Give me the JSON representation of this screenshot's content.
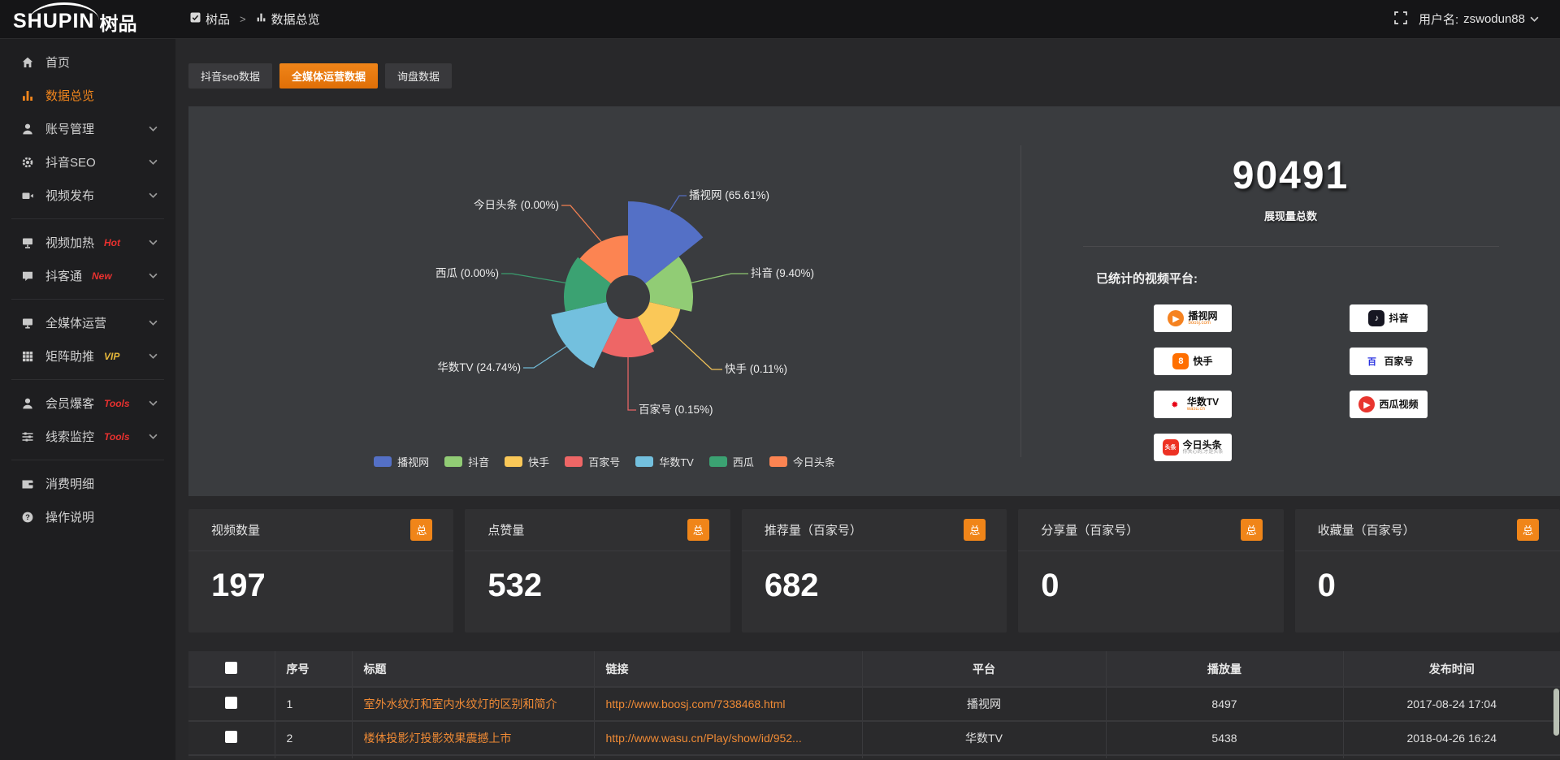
{
  "topbar": {
    "logo_primary": "SHUPIN",
    "logo_secondary": "树品",
    "breadcrumb": [
      {
        "label": "树品"
      },
      {
        "label": "数据总览"
      }
    ],
    "breadcrumb_separator": ">",
    "user_label": "用户名:",
    "username": "zswodun88"
  },
  "sidebar": {
    "items": [
      {
        "icon": "home-icon",
        "label": "首页",
        "active": false,
        "chevron": false,
        "tag": "",
        "tag_color": "",
        "divider_after": false
      },
      {
        "icon": "chart-icon",
        "label": "数据总览",
        "active": true,
        "chevron": false,
        "tag": "",
        "tag_color": "",
        "divider_after": false
      },
      {
        "icon": "user-icon",
        "label": "账号管理",
        "active": false,
        "chevron": true,
        "tag": "",
        "tag_color": "",
        "divider_after": false
      },
      {
        "icon": "gear-icon",
        "label": "抖音SEO",
        "active": false,
        "chevron": true,
        "tag": "",
        "tag_color": "",
        "divider_after": false
      },
      {
        "icon": "video-icon",
        "label": "视频发布",
        "active": false,
        "chevron": true,
        "tag": "",
        "tag_color": "",
        "divider_after": true
      },
      {
        "icon": "heat-icon",
        "label": "视频加热",
        "active": false,
        "chevron": true,
        "tag": "Hot",
        "tag_color": "#e8312f",
        "divider_after": false
      },
      {
        "icon": "chat-icon",
        "label": "抖客通",
        "active": false,
        "chevron": true,
        "tag": "New",
        "tag_color": "#e8312f",
        "divider_after": true
      },
      {
        "icon": "monitor-icon",
        "label": "全媒体运营",
        "active": false,
        "chevron": true,
        "tag": "",
        "tag_color": "",
        "divider_after": false
      },
      {
        "icon": "grid-icon",
        "label": "矩阵助推",
        "active": false,
        "chevron": true,
        "tag": "VIP",
        "tag_color": "#e7b83a",
        "divider_after": true
      },
      {
        "icon": "member-icon",
        "label": "会员爆客",
        "active": false,
        "chevron": true,
        "tag": "Tools",
        "tag_color": "#e8312f",
        "divider_after": false
      },
      {
        "icon": "sliders-icon",
        "label": "线索监控",
        "active": false,
        "chevron": true,
        "tag": "Tools",
        "tag_color": "#e8312f",
        "divider_after": true
      },
      {
        "icon": "wallet-icon",
        "label": "消费明细",
        "active": false,
        "chevron": false,
        "tag": "",
        "tag_color": "",
        "divider_after": false
      },
      {
        "icon": "question-icon",
        "label": "操作说明",
        "active": false,
        "chevron": false,
        "tag": "",
        "tag_color": "",
        "divider_after": false
      }
    ]
  },
  "tabs": [
    {
      "label": "抖音seo数据",
      "active": false
    },
    {
      "label": "全媒体运营数据",
      "active": true
    },
    {
      "label": "询盘数据",
      "active": false
    }
  ],
  "chart_data": {
    "type": "pie",
    "rose": true,
    "legend_position": "bottom",
    "label_format": "{name} ({percent}%)",
    "items": [
      {
        "name": "播视网",
        "percent": 65.61,
        "label": "播视网 (65.61%)",
        "color": "#5470c6",
        "radius": 118
      },
      {
        "name": "抖音",
        "percent": 9.4,
        "label": "抖音 (9.40%)",
        "color": "#91cc75",
        "radius": 80
      },
      {
        "name": "快手",
        "percent": 0.11,
        "label": "快手 (0.11%)",
        "color": "#fac858",
        "radius": 66
      },
      {
        "name": "百家号",
        "percent": 0.15,
        "label": "百家号 (0.15%)",
        "color": "#ee6666",
        "radius": 74
      },
      {
        "name": "华数TV",
        "percent": 24.74,
        "label": "华数TV (24.74%)",
        "color": "#73c0de",
        "radius": 97
      },
      {
        "name": "西瓜",
        "percent": 0.0,
        "label": "西瓜 (0.00%)",
        "color": "#3ba272",
        "radius": 79
      },
      {
        "name": "今日头条",
        "percent": 0.0,
        "label": "今日头条 (0.00%)",
        "color": "#fc8452",
        "radius": 76
      }
    ]
  },
  "summary": {
    "total": "90491",
    "total_label": "展现量总数",
    "platforms_title": "已统计的视频平台:",
    "platforms": [
      {
        "label": "播视网",
        "sub": "boosj.com",
        "sub_color": "#f07b10",
        "icon": "boosj-logo",
        "icon_bg": "#f58220",
        "icon_glyph": "▶",
        "icon_round": true
      },
      {
        "label": "抖音",
        "sub": "",
        "sub_color": "",
        "icon": "douyin-logo",
        "icon_bg": "#161622",
        "icon_glyph": "♪",
        "icon_round": false
      },
      {
        "label": "快手",
        "sub": "",
        "sub_color": "",
        "icon": "kuaishou-logo",
        "icon_bg": "#ff6f00",
        "icon_glyph": "8",
        "icon_round": false
      },
      {
        "label": "百家号",
        "sub": "",
        "sub_color": "",
        "icon": "baijiahao-logo",
        "icon_bg": "#ffffff",
        "icon_glyph": "百",
        "icon_round": false,
        "icon_fg": "#2932e1"
      },
      {
        "label": "华数TV",
        "sub": "wasu.cn",
        "sub_color": "#f07b10",
        "icon": "wasu-logo",
        "icon_bg": "#ffffff",
        "icon_glyph": "✹",
        "icon_round": false,
        "icon_fg": "#e60012"
      },
      {
        "label": "西瓜视频",
        "sub": "",
        "sub_color": "",
        "icon": "xigua-logo",
        "icon_bg": "#e8352e",
        "icon_glyph": "▶",
        "icon_round": true
      },
      {
        "label": "今日头条",
        "sub": "你关心的,才是头条",
        "sub_color": "#999999",
        "icon": "toutiao-logo",
        "icon_bg": "#ed3224",
        "icon_glyph": "头条",
        "icon_round": false
      }
    ]
  },
  "stats_cards": [
    {
      "title": "视频数量",
      "badge": "总",
      "value": "197"
    },
    {
      "title": "点赞量",
      "badge": "总",
      "value": "532"
    },
    {
      "title": "推荐量（百家号）",
      "badge": "总",
      "value": "682"
    },
    {
      "title": "分享量（百家号）",
      "badge": "总",
      "value": "0"
    },
    {
      "title": "收藏量（百家号）",
      "badge": "总",
      "value": "0"
    }
  ],
  "table": {
    "headers": [
      "序号",
      "标题",
      "链接",
      "平台",
      "播放量",
      "发布时间"
    ],
    "rows": [
      {
        "num": "1",
        "title": "室外水纹灯和室内水纹灯的区别和简介",
        "link": "http://www.boosj.com/7338468.html",
        "platform": "播视网",
        "plays": "8497",
        "time": "2017-08-24 17:04"
      },
      {
        "num": "2",
        "title": "楼体投影灯投影效果震撼上市",
        "link": "http://www.wasu.cn/Play/show/id/952...",
        "platform": "华数TV",
        "plays": "5438",
        "time": "2018-04-26 16:24"
      },
      {
        "num": "",
        "title": "",
        "link": "",
        "platform": "",
        "plays": "",
        "time": ""
      }
    ]
  },
  "colors": {
    "accent_orange": "#f0851c",
    "link_orange": "#ef8a35",
    "panel_bg": "#3a3c3f",
    "hot_red": "#e8312f",
    "vip_gold": "#e7b83a"
  }
}
